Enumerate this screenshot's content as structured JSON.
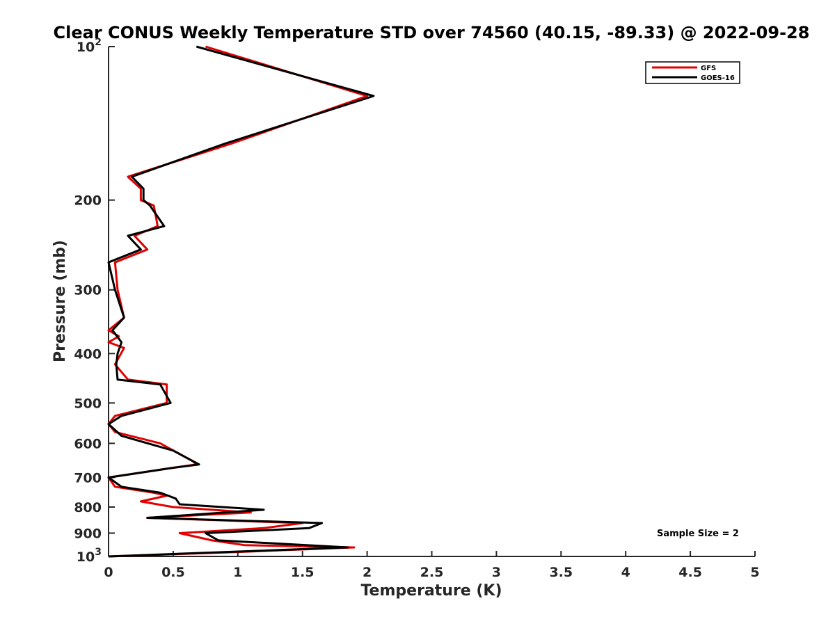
{
  "chart_data": {
    "type": "line",
    "title": "Clear CONUS Weekly Temperature STD over 74560 (40.15, -89.33) @ 2022-09-28",
    "xlabel": "Temperature (K)",
    "ylabel": "Pressure (mb)",
    "xlim": [
      0,
      5
    ],
    "ylim": [
      100,
      1000
    ],
    "y_scale": "log",
    "y_reversed": true,
    "x_ticks": [
      "0",
      "0.5",
      "1",
      "1.5",
      "2",
      "2.5",
      "3",
      "3.5",
      "4",
      "4.5",
      "5"
    ],
    "y_ticks": [
      {
        "value": 100,
        "base": "10",
        "exp": "2"
      },
      {
        "value": 200,
        "label": "200"
      },
      {
        "value": 300,
        "label": "300"
      },
      {
        "value": 400,
        "label": "400"
      },
      {
        "value": 500,
        "label": "500"
      },
      {
        "value": 600,
        "label": "600"
      },
      {
        "value": 700,
        "label": "700"
      },
      {
        "value": 800,
        "label": "800"
      },
      {
        "value": 900,
        "label": "900"
      },
      {
        "value": 1000,
        "base": "10",
        "exp": "3"
      }
    ],
    "legend_position": "top-right",
    "grid": false,
    "series": [
      {
        "name": "GFS",
        "color": "#e00000",
        "points": [
          [
            0.75,
            100
          ],
          [
            2.0,
            125
          ],
          [
            0.95,
            155
          ],
          [
            0.15,
            180
          ],
          [
            0.25,
            190
          ],
          [
            0.25,
            200
          ],
          [
            0.35,
            205
          ],
          [
            0.38,
            225
          ],
          [
            0.2,
            235
          ],
          [
            0.3,
            250
          ],
          [
            0.05,
            265
          ],
          [
            0.07,
            300
          ],
          [
            0.12,
            340
          ],
          [
            0.0,
            360
          ],
          [
            0.08,
            370
          ],
          [
            0.0,
            380
          ],
          [
            0.12,
            390
          ],
          [
            0.05,
            420
          ],
          [
            0.15,
            450
          ],
          [
            0.45,
            460
          ],
          [
            0.45,
            500
          ],
          [
            0.05,
            530
          ],
          [
            0.0,
            550
          ],
          [
            0.05,
            570
          ],
          [
            0.4,
            600
          ],
          [
            0.65,
            650
          ],
          [
            0.68,
            660
          ],
          [
            0.5,
            670
          ],
          [
            0.0,
            700
          ],
          [
            0.05,
            730
          ],
          [
            0.35,
            750
          ],
          [
            0.45,
            760
          ],
          [
            0.25,
            780
          ],
          [
            0.5,
            800
          ],
          [
            1.1,
            820
          ],
          [
            0.3,
            840
          ],
          [
            1.5,
            860
          ],
          [
            1.2,
            880
          ],
          [
            0.55,
            900
          ],
          [
            0.8,
            930
          ],
          [
            1.05,
            950
          ],
          [
            1.9,
            960
          ],
          [
            1.0,
            980
          ],
          [
            0.0,
            1000
          ]
        ]
      },
      {
        "name": "GOES-16",
        "color": "#000000",
        "points": [
          [
            0.68,
            100
          ],
          [
            2.05,
            125
          ],
          [
            0.9,
            155
          ],
          [
            0.18,
            180
          ],
          [
            0.27,
            190
          ],
          [
            0.27,
            200
          ],
          [
            0.32,
            205
          ],
          [
            0.43,
            225
          ],
          [
            0.15,
            235
          ],
          [
            0.25,
            250
          ],
          [
            0.0,
            265
          ],
          [
            0.05,
            300
          ],
          [
            0.12,
            340
          ],
          [
            0.03,
            360
          ],
          [
            0.1,
            380
          ],
          [
            0.07,
            400
          ],
          [
            0.06,
            420
          ],
          [
            0.07,
            450
          ],
          [
            0.4,
            460
          ],
          [
            0.48,
            500
          ],
          [
            0.1,
            530
          ],
          [
            0.0,
            550
          ],
          [
            0.1,
            580
          ],
          [
            0.5,
            620
          ],
          [
            0.7,
            660
          ],
          [
            0.5,
            670
          ],
          [
            0.0,
            700
          ],
          [
            0.1,
            730
          ],
          [
            0.4,
            750
          ],
          [
            0.52,
            770
          ],
          [
            0.55,
            790
          ],
          [
            1.2,
            810
          ],
          [
            0.3,
            840
          ],
          [
            1.65,
            860
          ],
          [
            1.55,
            880
          ],
          [
            0.75,
            900
          ],
          [
            0.85,
            930
          ],
          [
            1.85,
            960
          ],
          [
            0.0,
            1000
          ]
        ]
      }
    ],
    "annotation": "Sample Size = 2"
  }
}
